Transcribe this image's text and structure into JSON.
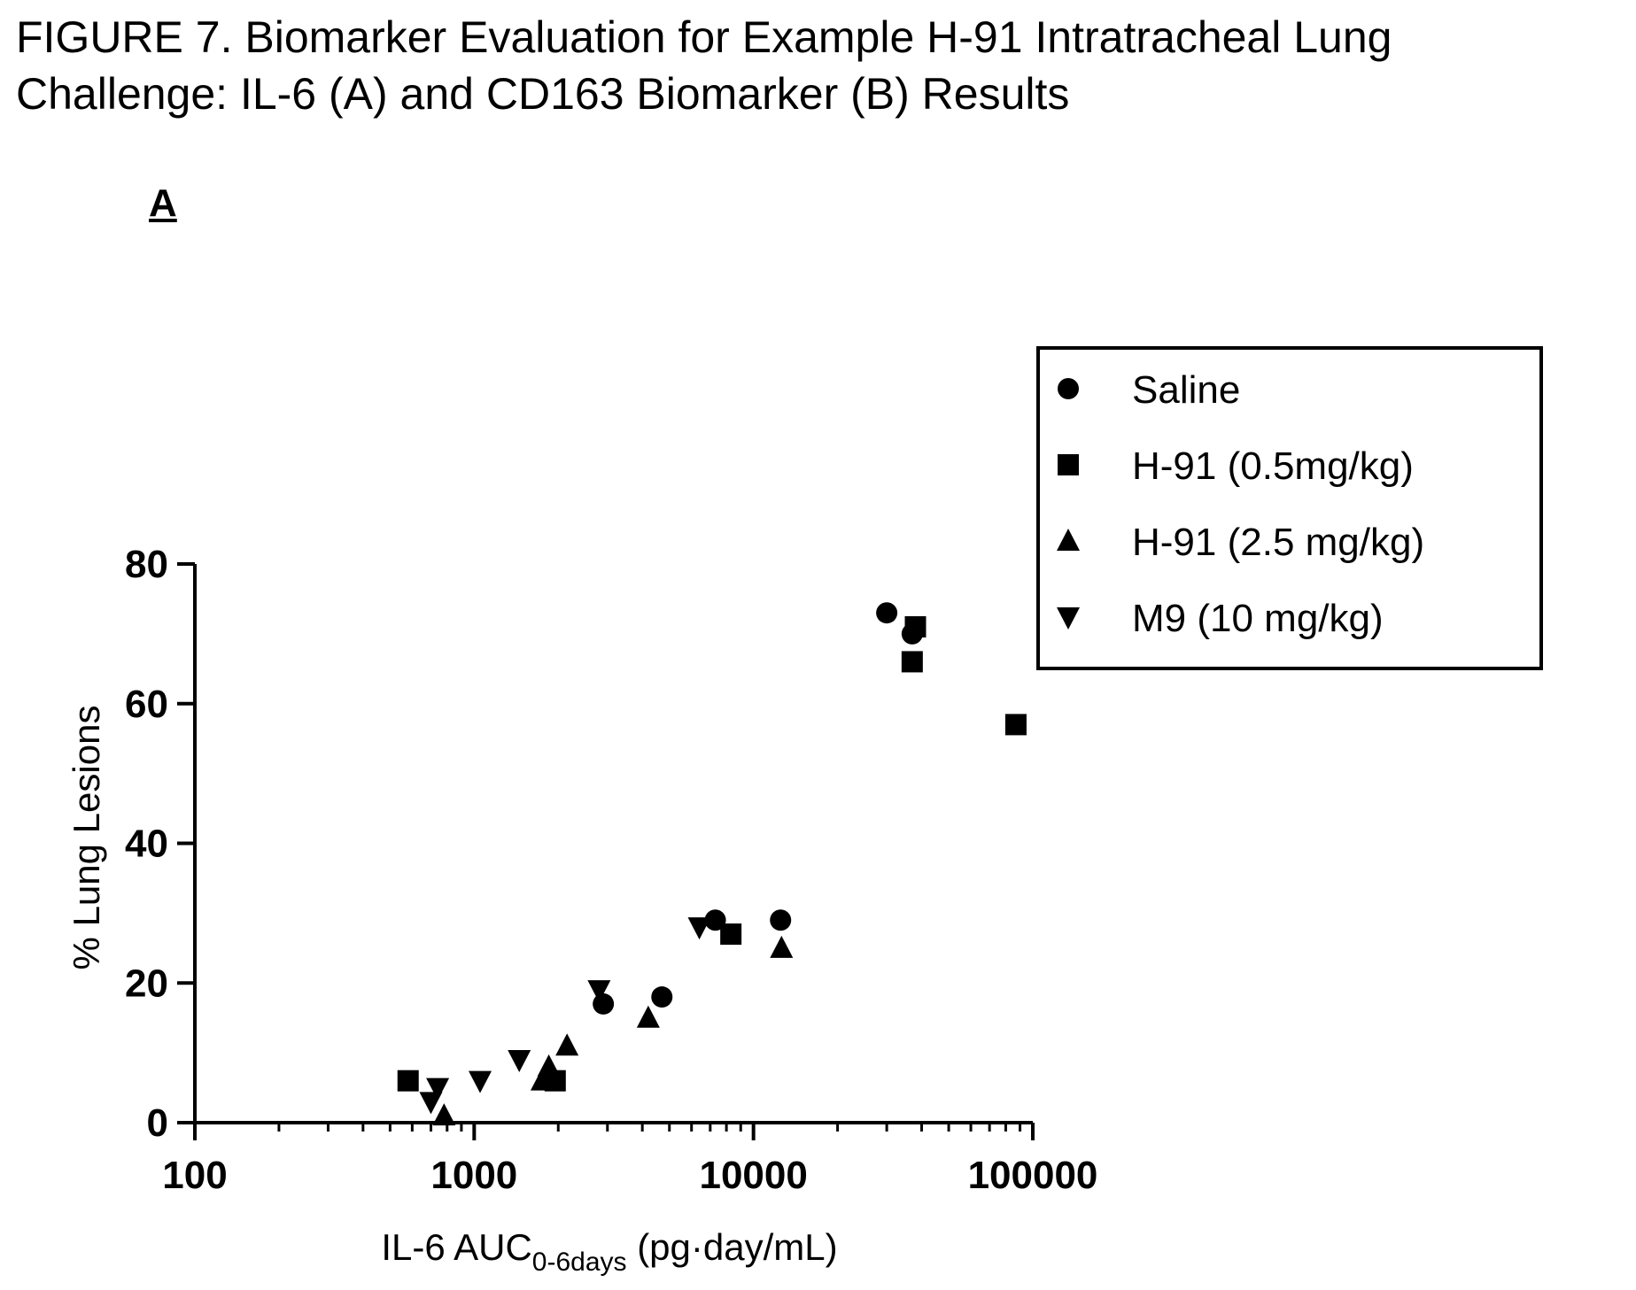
{
  "figure": {
    "title_line1": "FIGURE 7. Biomarker Evaluation for Example H-91 Intratracheal Lung",
    "title_line2": "Challenge: IL-6 (A) and CD163 Biomarker (B) Results",
    "panel_label": "A"
  },
  "chart_data": {
    "type": "scatter",
    "title": "",
    "xlabel_main": "IL-6 AUC",
    "xlabel_sub": "0-6days",
    "xlabel_unit": " (pg·day/mL)",
    "ylabel": "% Lung Lesions",
    "x_scale": "log",
    "xlim": [
      100,
      100000
    ],
    "ylim": [
      0,
      80
    ],
    "x_ticks": [
      100,
      1000,
      10000,
      100000
    ],
    "x_tick_labels": [
      "100",
      "1000",
      "10000",
      "100000"
    ],
    "y_ticks": [
      0,
      20,
      40,
      60,
      80
    ],
    "y_tick_labels": [
      "0",
      "20",
      "40",
      "60",
      "80"
    ],
    "grid": false,
    "legend_position": "top-right",
    "marker_color": "#000000",
    "series": [
      {
        "name": "Saline",
        "marker": "circle",
        "points": [
          {
            "x": 2900,
            "y": 17
          },
          {
            "x": 4700,
            "y": 18
          },
          {
            "x": 7300,
            "y": 29
          },
          {
            "x": 12500,
            "y": 29
          },
          {
            "x": 30000,
            "y": 73
          },
          {
            "x": 37000,
            "y": 70
          }
        ]
      },
      {
        "name": "H-91 (0.5mg/kg)",
        "marker": "square",
        "points": [
          {
            "x": 580,
            "y": 6
          },
          {
            "x": 1950,
            "y": 6
          },
          {
            "x": 8300,
            "y": 27
          },
          {
            "x": 37000,
            "y": 66
          },
          {
            "x": 38000,
            "y": 71
          },
          {
            "x": 87000,
            "y": 57
          }
        ]
      },
      {
        "name": "H-91 (2.5 mg/kg)",
        "marker": "triangle-up",
        "points": [
          {
            "x": 780,
            "y": 1
          },
          {
            "x": 1750,
            "y": 6
          },
          {
            "x": 1850,
            "y": 8
          },
          {
            "x": 2150,
            "y": 11
          },
          {
            "x": 4200,
            "y": 15
          },
          {
            "x": 12600,
            "y": 25
          }
        ]
      },
      {
        "name": "M9 (10 mg/kg)",
        "marker": "triangle-down",
        "points": [
          {
            "x": 700,
            "y": 3
          },
          {
            "x": 740,
            "y": 5
          },
          {
            "x": 1050,
            "y": 6
          },
          {
            "x": 1450,
            "y": 9
          },
          {
            "x": 2800,
            "y": 19
          },
          {
            "x": 6400,
            "y": 28
          }
        ]
      }
    ]
  }
}
